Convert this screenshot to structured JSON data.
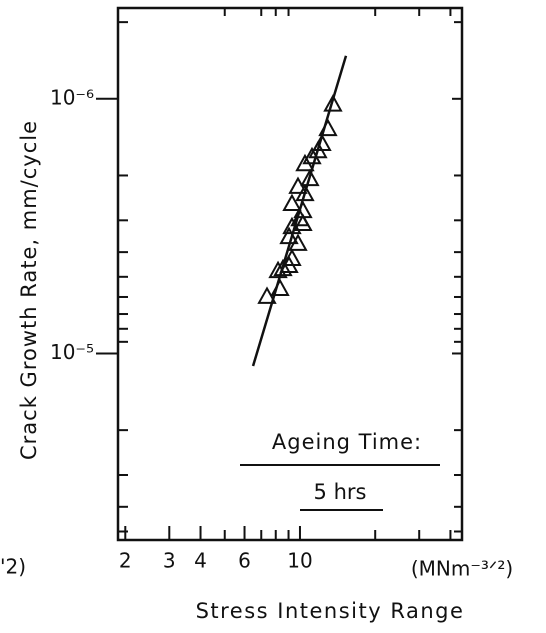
{
  "chart_data": {
    "type": "scatter",
    "x_label": "Stress Intensity Range",
    "y_label": "Crack Growth Rate, mm/cycle",
    "x_unit": "(MNm⁻³ᐟ²)",
    "left_fragment": "'2)",
    "annotation_title": "Ageing Time:",
    "annotation_value": "5 hrs",
    "log_x": true,
    "log_y": true,
    "xlim": [
      1.87,
      44.5
    ],
    "ylim": [
      5.4e-05,
      4.4e-07
    ],
    "xticks": [
      2,
      3,
      4,
      6,
      10
    ],
    "xminor_ticks": [
      5,
      7,
      8,
      9,
      20,
      30,
      40
    ],
    "yticks": [
      {
        "value": 1e-06,
        "label": "10⁻⁶"
      },
      {
        "value": 1e-05,
        "label": "10⁻⁵"
      }
    ],
    "yminor_ticks": [
      5e-07,
      2e-06,
      3e-06,
      4e-06,
      5e-06,
      6e-06,
      7e-06,
      8e-06,
      9e-06,
      2e-05,
      3e-05,
      4e-05,
      5e-05
    ],
    "color": "#111111",
    "marker": "triangle",
    "x": [
      7.38,
      8.32,
      8.55,
      9.04,
      8.17,
      9.29,
      9.82,
      9.04,
      10.28,
      9.29,
      10,
      10.28,
      9.29,
      10.47,
      9.82,
      10.96,
      10.47,
      11.17,
      11.8,
      12.25,
      12.94,
      13.55
    ],
    "values": [
      5.97e-06,
      5.56e-06,
      4.65e-06,
      4.52e-06,
      4.73e-06,
      4.24e-06,
      3.7e-06,
      3.48e-06,
      3.09e-06,
      3.18e-06,
      2.96e-06,
      2.75e-06,
      2.58e-06,
      2.36e-06,
      2.21e-06,
      2.06e-06,
      1.8e-06,
      1.69e-06,
      1.6e-06,
      1.5e-06,
      1.31e-06,
      1.05e-06
    ],
    "fit_line": {
      "x": [
        6.49,
        15.28
      ],
      "values": [
        1.12e-05,
        6.78e-07
      ]
    }
  }
}
